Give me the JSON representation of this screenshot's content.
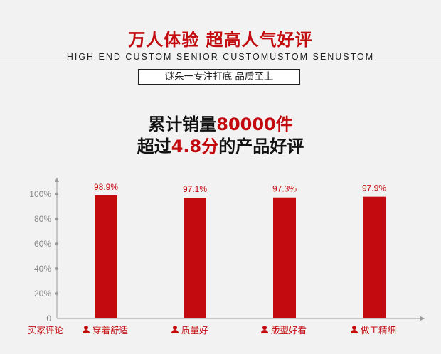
{
  "header": {
    "title": "万人体验 超高人气好评",
    "subtitle": "HIGH END CUSTOM SENIOR CUSTOMUSTOM SENUSTOM",
    "tagline": "谜朵一专注打底 品质至上"
  },
  "stats": {
    "line1_prefix": "累计销量",
    "line1_highlight": "80000件",
    "line2_prefix": "超过",
    "line2_highlight": "4.8分",
    "line2_suffix": "的产品好评"
  },
  "colors": {
    "accent": "#c30a0f",
    "background": "#f2f2f2",
    "axis": "#9a9a9a"
  },
  "chart_data": {
    "type": "bar",
    "xlabel": "买家评论",
    "ylabel": "",
    "ylim": [
      0,
      100
    ],
    "yticks": [
      "0",
      "20%",
      "40%",
      "60%",
      "80%",
      "100%"
    ],
    "categories": [
      "穿着舒适",
      "质量好",
      "版型好看",
      "做工精细"
    ],
    "category_icon": "person-icon",
    "values": [
      98.9,
      97.1,
      97.3,
      97.9
    ],
    "value_labels": [
      "98.9%",
      "97.1%",
      "97.3%",
      "97.9%"
    ],
    "grid": false,
    "legend": "none"
  }
}
